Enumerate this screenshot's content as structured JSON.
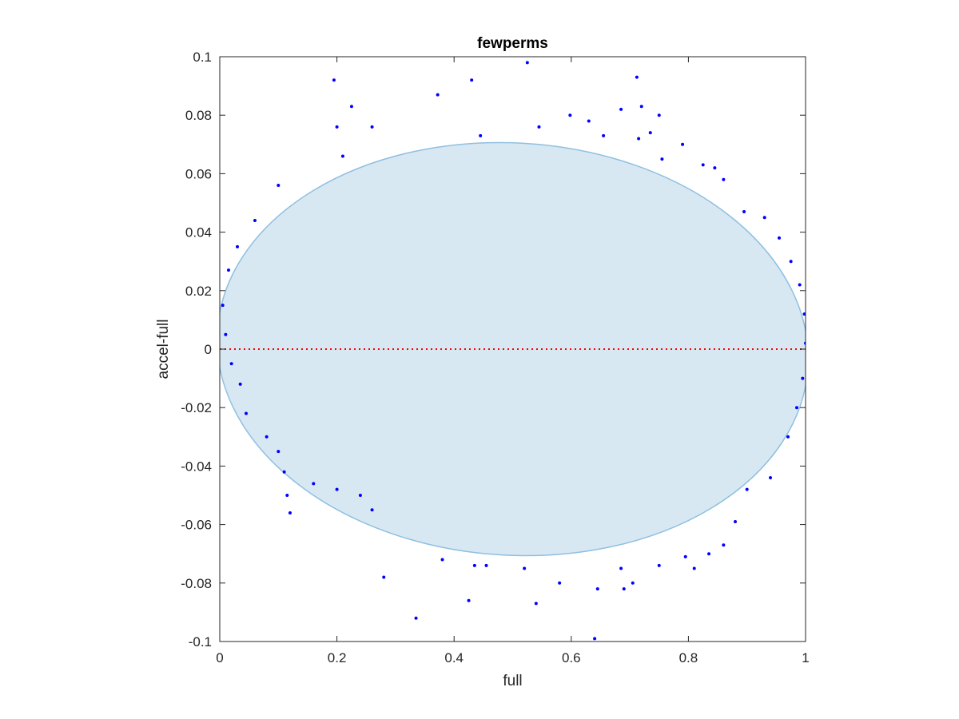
{
  "chart_data": {
    "type": "scatter",
    "title": "fewperms",
    "xlabel": "full",
    "ylabel": "accel-full",
    "xlim": [
      0,
      1
    ],
    "ylim": [
      -0.1,
      0.1
    ],
    "xticks": [
      0,
      0.2,
      0.4,
      0.6,
      0.8,
      1
    ],
    "yticks": [
      -0.1,
      -0.08,
      -0.06,
      -0.04,
      -0.02,
      0,
      0.02,
      0.04,
      0.06,
      0.08,
      0.1
    ],
    "xtick_labels": [
      "0",
      "0.2",
      "0.4",
      "0.6",
      "0.8",
      "1"
    ],
    "ytick_labels": [
      "-0.1",
      "-0.08",
      "-0.06",
      "-0.04",
      "-0.02",
      "0",
      "0.02",
      "0.04",
      "0.06",
      "0.08",
      "0.1"
    ],
    "grid": false,
    "reference_line": {
      "y": 0,
      "style": "dotted",
      "color": "#ff0000"
    },
    "region": {
      "shape": "ellipse",
      "center": [
        0.5,
        0.0
      ],
      "semi_axis_x": 0.505,
      "semi_axis_y": 0.0705,
      "rotation_deg": 3.5,
      "fill": "#d8e8f3",
      "stroke": "#8fc0e0"
    },
    "series": [
      {
        "color": "#0000ff",
        "points": [
          [
            0.195,
            0.092
          ],
          [
            0.225,
            0.083
          ],
          [
            0.26,
            0.076
          ],
          [
            0.2,
            0.076
          ],
          [
            0.372,
            0.087
          ],
          [
            0.43,
            0.092
          ],
          [
            0.525,
            0.098
          ],
          [
            0.445,
            0.073
          ],
          [
            0.545,
            0.076
          ],
          [
            0.598,
            0.08
          ],
          [
            0.63,
            0.078
          ],
          [
            0.685,
            0.082
          ],
          [
            0.712,
            0.093
          ],
          [
            0.72,
            0.083
          ],
          [
            0.75,
            0.08
          ],
          [
            0.735,
            0.074
          ],
          [
            0.655,
            0.073
          ],
          [
            0.715,
            0.072
          ],
          [
            0.79,
            0.07
          ],
          [
            0.755,
            0.065
          ],
          [
            0.825,
            0.063
          ],
          [
            0.845,
            0.062
          ],
          [
            0.21,
            0.066
          ],
          [
            0.1,
            0.056
          ],
          [
            0.06,
            0.044
          ],
          [
            0.03,
            0.035
          ],
          [
            0.015,
            0.027
          ],
          [
            0.005,
            0.015
          ],
          [
            0.01,
            0.005
          ],
          [
            0.02,
            -0.005
          ],
          [
            0.035,
            -0.012
          ],
          [
            0.045,
            -0.022
          ],
          [
            0.08,
            -0.03
          ],
          [
            0.1,
            -0.035
          ],
          [
            0.11,
            -0.042
          ],
          [
            0.115,
            -0.05
          ],
          [
            0.12,
            -0.056
          ],
          [
            0.16,
            -0.046
          ],
          [
            0.2,
            -0.048
          ],
          [
            0.24,
            -0.05
          ],
          [
            0.26,
            -0.055
          ],
          [
            0.28,
            -0.078
          ],
          [
            0.335,
            -0.092
          ],
          [
            0.38,
            -0.072
          ],
          [
            0.425,
            -0.086
          ],
          [
            0.435,
            -0.074
          ],
          [
            0.455,
            -0.074
          ],
          [
            0.52,
            -0.075
          ],
          [
            0.54,
            -0.087
          ],
          [
            0.58,
            -0.08
          ],
          [
            0.645,
            -0.082
          ],
          [
            0.69,
            -0.082
          ],
          [
            0.705,
            -0.08
          ],
          [
            0.64,
            -0.099
          ],
          [
            0.685,
            -0.075
          ],
          [
            0.75,
            -0.074
          ],
          [
            0.795,
            -0.071
          ],
          [
            0.81,
            -0.075
          ],
          [
            0.835,
            -0.07
          ],
          [
            0.86,
            -0.067
          ],
          [
            0.88,
            -0.059
          ],
          [
            0.9,
            -0.048
          ],
          [
            0.94,
            -0.044
          ],
          [
            0.97,
            -0.03
          ],
          [
            0.985,
            -0.02
          ],
          [
            0.995,
            -0.01
          ],
          [
            1.0,
            0.002
          ],
          [
            0.998,
            0.012
          ],
          [
            0.99,
            0.022
          ],
          [
            0.975,
            0.03
          ],
          [
            0.955,
            0.038
          ],
          [
            0.93,
            0.045
          ],
          [
            0.895,
            0.047
          ],
          [
            0.86,
            0.058
          ]
        ]
      }
    ]
  }
}
